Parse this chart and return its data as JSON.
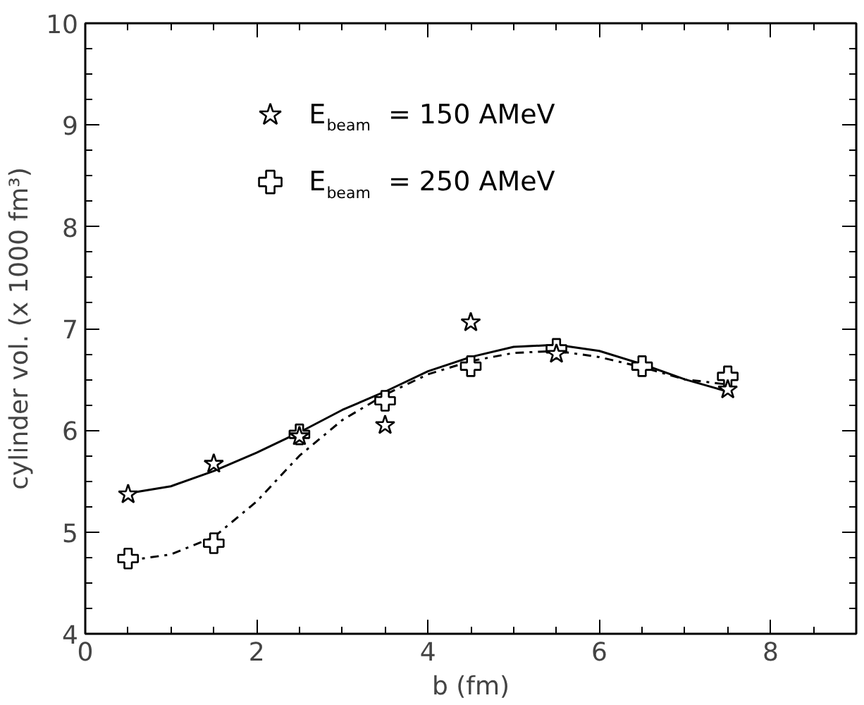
{
  "chart_data": {
    "type": "scatter",
    "xlabel": "b (fm)",
    "ylabel": "cylinder vol. (x 1000 fm³)",
    "x": [
      0.5,
      1.5,
      2.5,
      3.5,
      4.5,
      5.5,
      6.5,
      7.5
    ],
    "series": [
      {
        "name": "E$_{beam}$ = 150 AMeV",
        "color": "#000000",
        "marker": "star",
        "values": [
          5.37,
          5.67,
          5.94,
          6.05,
          7.06,
          6.75,
          null,
          6.4
        ]
      },
      {
        "name": "E$_{beam}$ = 250 AMeV",
        "color": "#000000",
        "marker": "cross",
        "values": [
          4.74,
          4.89,
          5.96,
          6.29,
          6.63,
          6.8,
          6.63,
          6.53
        ]
      },
      {
        "type": "line",
        "color": "#000000",
        "line_style": "solid",
        "marker": "none",
        "x": [
          0.5,
          1,
          1.5,
          2,
          2.5,
          3,
          3.5,
          4,
          4.5,
          5,
          5.5,
          6,
          6.5,
          7,
          7.5
        ],
        "values": [
          5.38,
          5.45,
          5.6,
          5.78,
          5.98,
          6.2,
          6.38,
          6.58,
          6.72,
          6.82,
          6.84,
          6.78,
          6.65,
          6.5,
          6.38
        ]
      },
      {
        "type": "line",
        "color": "#000000",
        "line_style": "dashdot",
        "marker": "none",
        "x": [
          0.5,
          1,
          1.5,
          2,
          2.5,
          3,
          3.5,
          4,
          4.5,
          5,
          5.5,
          6,
          6.5,
          7,
          7.5
        ],
        "values": [
          4.72,
          4.78,
          4.95,
          5.3,
          5.75,
          6.1,
          6.35,
          6.55,
          6.68,
          6.76,
          6.78,
          6.72,
          6.62,
          6.5,
          6.45
        ]
      }
    ],
    "xlim": [
      0,
      9
    ],
    "ylim": [
      4,
      10
    ],
    "xticks": [
      0,
      2,
      4,
      6,
      8
    ],
    "yticks": [
      4,
      5,
      6,
      7,
      8,
      9,
      10
    ],
    "grid": false,
    "legend": "top"
  }
}
